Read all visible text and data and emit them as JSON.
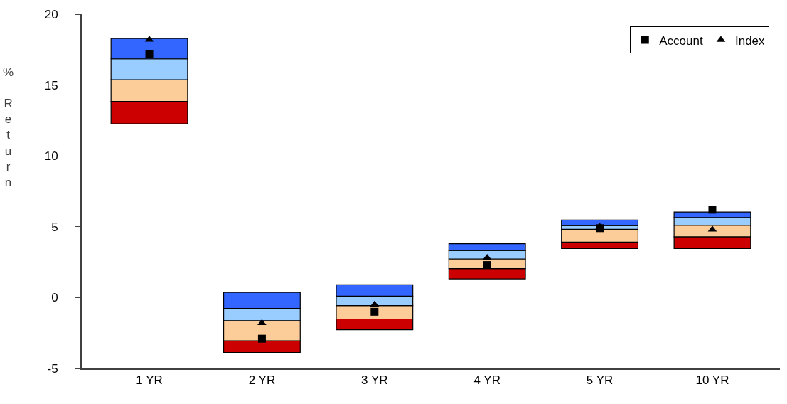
{
  "chart_data": {
    "type": "bar",
    "ylabel": "% Return",
    "categories": [
      "1 YR",
      "2 YR",
      "3 YR",
      "4 YR",
      "5 YR",
      "10 YR"
    ],
    "series": [
      {
        "color": "#cc0000",
        "base": [
          12.27,
          -3.87,
          -2.27,
          1.32,
          3.46,
          3.46
        ],
        "values": [
          1.58,
          0.82,
          0.76,
          0.73,
          0.46,
          0.83
        ]
      },
      {
        "color": "#fccc99",
        "base": [
          13.85,
          -3.05,
          -1.51,
          2.05,
          3.92,
          4.29
        ],
        "values": [
          1.53,
          1.42,
          0.95,
          0.68,
          0.9,
          0.82
        ]
      },
      {
        "color": "#99ccff",
        "base": [
          15.38,
          -1.63,
          -0.56,
          2.73,
          4.82,
          5.11
        ],
        "values": [
          1.47,
          0.87,
          0.66,
          0.6,
          0.26,
          0.54
        ]
      },
      {
        "color": "#3366ff",
        "base": [
          16.85,
          -0.76,
          0.1,
          3.33,
          5.08,
          5.65
        ],
        "values": [
          1.43,
          1.12,
          0.8,
          0.47,
          0.4,
          0.39
        ]
      },
      {
        "type": "scatter",
        "name": "Account",
        "color": "#000000",
        "marker": "square",
        "x": [
          "1 YR",
          "2 YR",
          "3 YR",
          "4 YR",
          "5 YR",
          "10 YR"
        ],
        "values": [
          17.2,
          -2.9,
          -1.0,
          2.3,
          4.9,
          6.2
        ]
      },
      {
        "type": "scatter",
        "name": "Index",
        "color": "#000000",
        "marker": "triangle",
        "x": [
          "1 YR",
          "2 YR",
          "3 YR",
          "4 YR",
          "5 YR",
          "10 YR"
        ],
        "values": [
          18.2,
          -1.8,
          -0.5,
          2.8,
          5.0,
          4.8
        ]
      }
    ],
    "ylim": [
      -5,
      20
    ],
    "yticks": [
      -5,
      0,
      5,
      10,
      15,
      20
    ],
    "legend": "top right"
  }
}
